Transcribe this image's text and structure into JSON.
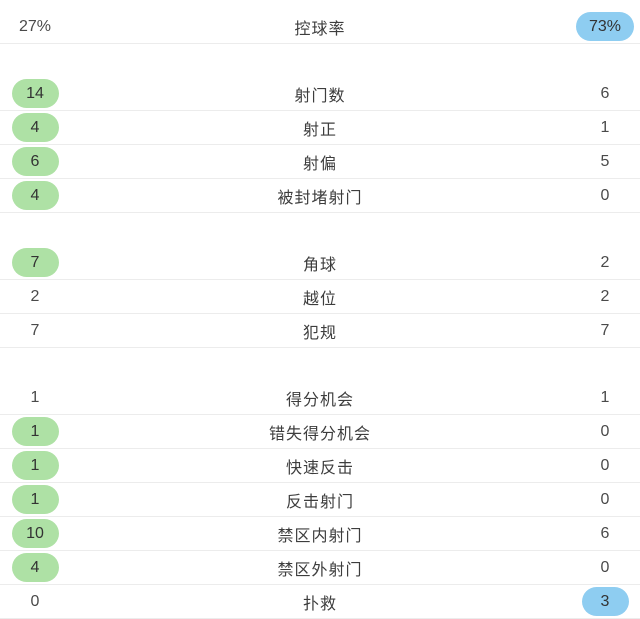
{
  "panel": {
    "type": "football-match-statistics",
    "columns": [
      "home_value",
      "stat_label",
      "away_value"
    ],
    "colors": {
      "home_pill_bg": "#aee1a5",
      "away_pill_bg": "#8ecdf1",
      "label_text": "#3d3d3d",
      "value_text": "#4a4a4a",
      "divider": "#ececec",
      "background": "#ffffff"
    },
    "sections": [
      {
        "rows": [
          {
            "label": "控球率",
            "home": "27%",
            "away": "73%",
            "home_pill": false,
            "away_pill": true
          }
        ]
      },
      {
        "rows": [
          {
            "label": "射门数",
            "home": "14",
            "away": "6",
            "home_pill": true,
            "away_pill": false
          },
          {
            "label": "射正",
            "home": "4",
            "away": "1",
            "home_pill": true,
            "away_pill": false
          },
          {
            "label": "射偏",
            "home": "6",
            "away": "5",
            "home_pill": true,
            "away_pill": false
          },
          {
            "label": "被封堵射门",
            "home": "4",
            "away": "0",
            "home_pill": true,
            "away_pill": false
          }
        ]
      },
      {
        "rows": [
          {
            "label": "角球",
            "home": "7",
            "away": "2",
            "home_pill": true,
            "away_pill": false
          },
          {
            "label": "越位",
            "home": "2",
            "away": "2",
            "home_pill": false,
            "away_pill": false
          },
          {
            "label": "犯规",
            "home": "7",
            "away": "7",
            "home_pill": false,
            "away_pill": false
          }
        ]
      },
      {
        "rows": [
          {
            "label": "得分机会",
            "home": "1",
            "away": "1",
            "home_pill": false,
            "away_pill": false
          },
          {
            "label": "错失得分机会",
            "home": "1",
            "away": "0",
            "home_pill": true,
            "away_pill": false
          },
          {
            "label": "快速反击",
            "home": "1",
            "away": "0",
            "home_pill": true,
            "away_pill": false
          },
          {
            "label": "反击射门",
            "home": "1",
            "away": "0",
            "home_pill": true,
            "away_pill": false
          },
          {
            "label": "禁区内射门",
            "home": "10",
            "away": "6",
            "home_pill": true,
            "away_pill": false
          },
          {
            "label": "禁区外射门",
            "home": "4",
            "away": "0",
            "home_pill": true,
            "away_pill": false
          },
          {
            "label": "扑救",
            "home": "0",
            "away": "3",
            "home_pill": false,
            "away_pill": true
          }
        ]
      }
    ]
  }
}
